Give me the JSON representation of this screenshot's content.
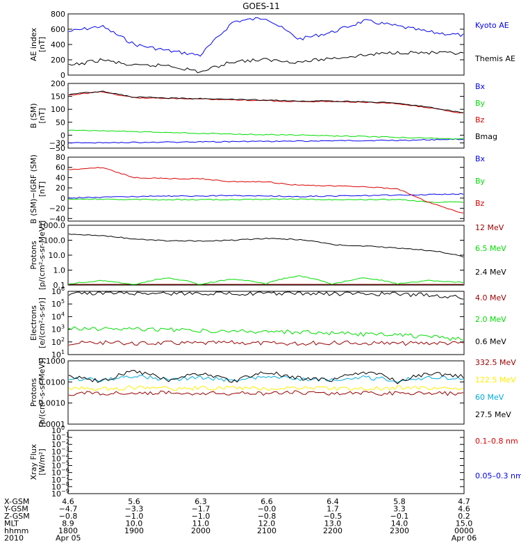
{
  "title": "GOES-11",
  "colors": {
    "black": "#000000",
    "blue": "#0000ee",
    "green": "#00dd00",
    "red": "#dd0000",
    "darkred": "#990000",
    "yellow": "#ffee00",
    "cyan": "#00aadd"
  },
  "chart_data": [
    {
      "type": "line",
      "id": "ae",
      "ylabel": [
        "AE index",
        "[nT]"
      ],
      "ylim": [
        0,
        800
      ],
      "scale": "linear",
      "yticks": [
        0,
        200,
        400,
        600,
        800
      ],
      "yticklabels": [
        "0",
        "200",
        "400",
        "600",
        "800"
      ],
      "x": [
        "1800",
        "1840",
        "1910",
        "2000",
        "2020",
        "2040",
        "2100",
        "2130",
        "2200",
        "2230",
        "2300",
        "2330",
        "0000"
      ],
      "series": [
        {
          "name": "Kyoto AE",
          "color": "blue",
          "values": [
            570,
            640,
            400,
            320,
            260,
            700,
            750,
            470,
            560,
            710,
            640,
            560,
            520
          ]
        },
        {
          "name": "Themis AE",
          "color": "black",
          "values": [
            120,
            200,
            120,
            130,
            40,
            180,
            200,
            170,
            220,
            260,
            300,
            290,
            280
          ]
        }
      ]
    },
    {
      "type": "line",
      "id": "bsm",
      "ylabel": [
        "B (SM)",
        "[nT]"
      ],
      "ylim": [
        -50,
        200
      ],
      "scale": "linear",
      "yticks": [
        -50,
        -30,
        0,
        50,
        100,
        150,
        200
      ],
      "yticklabels": [
        "−50",
        "−30",
        "0",
        "50",
        "100",
        "150",
        "200"
      ],
      "x": [
        "1800",
        "1830",
        "1900",
        "1930",
        "2000",
        "2030",
        "2100",
        "2130",
        "2200",
        "2230",
        "2300",
        "2330",
        "0000"
      ],
      "series": [
        {
          "name": "Bx",
          "color": "blue",
          "values": [
            -30,
            -29,
            -28,
            -27,
            -26,
            -25,
            -24,
            -23,
            -22,
            -21,
            -20,
            -18,
            -15
          ]
        },
        {
          "name": "By",
          "color": "green",
          "values": [
            20,
            17,
            14,
            10,
            7,
            4,
            2,
            0,
            -3,
            -5,
            -8,
            -12,
            -15
          ]
        },
        {
          "name": "Bz",
          "color": "red",
          "values": [
            155,
            168,
            145,
            142,
            140,
            137,
            133,
            130,
            130,
            127,
            122,
            105,
            85
          ]
        },
        {
          "name": "Bmag",
          "color": "black",
          "values": [
            157,
            170,
            147,
            144,
            142,
            139,
            135,
            132,
            132,
            129,
            124,
            107,
            87
          ]
        }
      ]
    },
    {
      "type": "line",
      "id": "bdiff",
      "ylabel": [
        "B (SM)−IGRF (SM)",
        "[nT]"
      ],
      "ylim": [
        -45,
        80
      ],
      "scale": "linear",
      "yticks": [
        -40,
        -20,
        0,
        20,
        40,
        60,
        80
      ],
      "yticklabels": [
        "−40",
        "−20",
        "0",
        "20",
        "40",
        "60",
        "80"
      ],
      "x": [
        "1800",
        "1830",
        "1900",
        "1930",
        "2000",
        "2030",
        "2100",
        "2130",
        "2200",
        "2230",
        "2300",
        "2330",
        "0000"
      ],
      "series": [
        {
          "name": "Bx",
          "color": "blue",
          "values": [
            0,
            2,
            3,
            4,
            4,
            5,
            4,
            3,
            4,
            5,
            6,
            7,
            8
          ]
        },
        {
          "name": "By",
          "color": "green",
          "values": [
            -2,
            -2,
            -3,
            -3,
            -3,
            -3,
            -2,
            -2,
            -3,
            -3,
            -3,
            -8,
            -8
          ]
        },
        {
          "name": "Bz",
          "color": "red",
          "values": [
            55,
            60,
            40,
            38,
            38,
            32,
            32,
            25,
            24,
            22,
            18,
            -10,
            -30
          ]
        }
      ]
    },
    {
      "type": "line",
      "id": "protons1",
      "ylabel": [
        "Protons",
        "[p/(cm²-s-sr-MeV)]"
      ],
      "ylim": [
        0.1,
        1000
      ],
      "scale": "log",
      "yticks": [
        0.1,
        1,
        10,
        100,
        1000
      ],
      "yticklabels": [
        "0.1",
        "1.0",
        "10.0",
        "100.0",
        "1000.0"
      ],
      "x": [
        "1800",
        "1830",
        "1900",
        "1930",
        "2000",
        "2030",
        "2100",
        "2130",
        "2200",
        "2230",
        "2300",
        "2330",
        "0000"
      ],
      "series": [
        {
          "name": "12 MeV",
          "color": "darkred",
          "values": [
            0.1,
            0.1,
            0.1,
            0.1,
            0.1,
            0.1,
            0.1,
            0.1,
            0.1,
            0.1,
            0.1,
            0.1,
            0.1
          ]
        },
        {
          "name": "6.5 MeV",
          "color": "green",
          "values": [
            0.12,
            0.2,
            0.1,
            0.3,
            0.1,
            0.25,
            0.12,
            0.4,
            0.1,
            0.3,
            0.12,
            0.2,
            0.15
          ]
        },
        {
          "name": "2.4 MeV",
          "color": "black",
          "values": [
            250,
            200,
            120,
            90,
            90,
            100,
            130,
            110,
            50,
            40,
            30,
            20,
            8
          ]
        }
      ]
    },
    {
      "type": "line",
      "id": "electrons",
      "ylabel": [
        "Electrons",
        "[e/(cm²-s-sr)]"
      ],
      "ylim": [
        10,
        1000000
      ],
      "scale": "log",
      "yticks": [
        10,
        100,
        1000,
        10000,
        100000,
        1000000
      ],
      "yticklabels": [
        "10",
        "10",
        "10",
        "10",
        "10",
        "10"
      ],
      "ytickexp": [
        "1",
        "2",
        "3",
        "4",
        "5",
        "6"
      ],
      "x": [
        "1800",
        "1830",
        "1900",
        "1930",
        "2000",
        "2030",
        "2100",
        "2130",
        "2200",
        "2230",
        "2300",
        "2330",
        "0000"
      ],
      "series": [
        {
          "name": "4.0 MeV",
          "color": "darkred",
          "values": [
            80,
            90,
            75,
            85,
            80,
            90,
            80,
            75,
            85,
            80,
            75,
            85,
            80
          ]
        },
        {
          "name": "2.0 MeV",
          "color": "green",
          "values": [
            1200,
            1100,
            1000,
            900,
            800,
            700,
            650,
            600,
            500,
            400,
            350,
            250,
            150
          ]
        },
        {
          "name": "0.6 MeV",
          "color": "black",
          "values": [
            700000,
            750000,
            720000,
            700000,
            720000,
            700000,
            690000,
            680000,
            650000,
            640000,
            600000,
            500000,
            300000
          ]
        }
      ]
    },
    {
      "type": "line",
      "id": "protons2",
      "ylabel": [
        "Protons",
        "[p/(cm²-s-sr-MeV)]"
      ],
      "ylim": [
        0.0001,
        0.1
      ],
      "scale": "log",
      "yticks": [
        0.0001,
        0.001,
        0.01,
        0.1
      ],
      "yticklabels": [
        "0.0001",
        "0.0010",
        "0.0100",
        "0.1000"
      ],
      "x": [
        "1800",
        "1830",
        "1900",
        "1930",
        "2000",
        "2030",
        "2100",
        "2130",
        "2200",
        "2230",
        "2300",
        "2330",
        "0000"
      ],
      "series": [
        {
          "name": "332.5 MeV",
          "color": "darkred",
          "values": [
            0.0028,
            0.003,
            0.0026,
            0.0031,
            0.0027,
            0.003,
            0.0028,
            0.0032,
            0.0027,
            0.003,
            0.0028,
            0.0029,
            0.0028
          ]
        },
        {
          "name": "122.5 MeV",
          "color": "yellow",
          "values": [
            0.005,
            0.0045,
            0.0055,
            0.0048,
            0.0052,
            0.005,
            0.0047,
            0.0053,
            0.005,
            0.0046,
            0.0054,
            0.005,
            0.0049
          ]
        },
        {
          "name": "60 MeV",
          "color": "cyan",
          "values": [
            0.015,
            0.012,
            0.018,
            0.013,
            0.016,
            0.012,
            0.017,
            0.014,
            0.013,
            0.016,
            0.012,
            0.017,
            0.015
          ]
        },
        {
          "name": "27.5 MeV",
          "color": "black",
          "values": [
            0.02,
            0.01,
            0.03,
            0.012,
            0.025,
            0.01,
            0.028,
            0.015,
            0.012,
            0.03,
            0.01,
            0.025,
            0.018
          ]
        }
      ]
    },
    {
      "type": "line",
      "id": "xray",
      "ylabel": [
        "Xray Flux",
        "[W/m²]"
      ],
      "ylim": [
        1e-09,
        1
      ],
      "scale": "log",
      "yticks": [
        1e-09,
        1e-08,
        1e-07,
        1e-06,
        1e-05,
        0.0001,
        0.001,
        0.01,
        0.1,
        1
      ],
      "yticklabels": [
        "10",
        "10",
        "10",
        "10",
        "10",
        "10",
        "10",
        "10",
        "10",
        "10"
      ],
      "ytickexp": [
        "−9",
        "−8",
        "−7",
        "−6",
        "−5",
        "−4",
        "−3",
        "−2",
        "−1",
        "0"
      ],
      "series": [
        {
          "name": "0.1–0.8 nm",
          "color": "red",
          "values": []
        },
        {
          "name": "0.05–0.3 nm",
          "color": "blue",
          "values": []
        }
      ]
    }
  ],
  "ephemeris": {
    "rows": [
      {
        "label": "X-GSM",
        "values": [
          "4.6",
          "5.6",
          "6.3",
          "6.6",
          "6.4",
          "5.8",
          "4.7"
        ]
      },
      {
        "label": "Y-GSM",
        "values": [
          "−4.7",
          "−3.3",
          "−1.7",
          "−0.0",
          "1.7",
          "3.3",
          "4.6"
        ]
      },
      {
        "label": "Z-GSM",
        "values": [
          "−0.8",
          "−1.0",
          "−1.0",
          "−0.8",
          "−0.5",
          "−0.1",
          "0.2"
        ]
      },
      {
        "label": "MLT",
        "values": [
          "8.9",
          "10.0",
          "11.0",
          "12.0",
          "13.0",
          "14.0",
          "15.0"
        ]
      },
      {
        "label": "hhmm",
        "values": [
          "1800",
          "1900",
          "2000",
          "2100",
          "2200",
          "2300",
          "0000"
        ]
      },
      {
        "label": "2010",
        "values": [
          "Apr 05",
          "",
          "",
          "",
          "",
          "",
          "Apr 06"
        ]
      }
    ]
  }
}
